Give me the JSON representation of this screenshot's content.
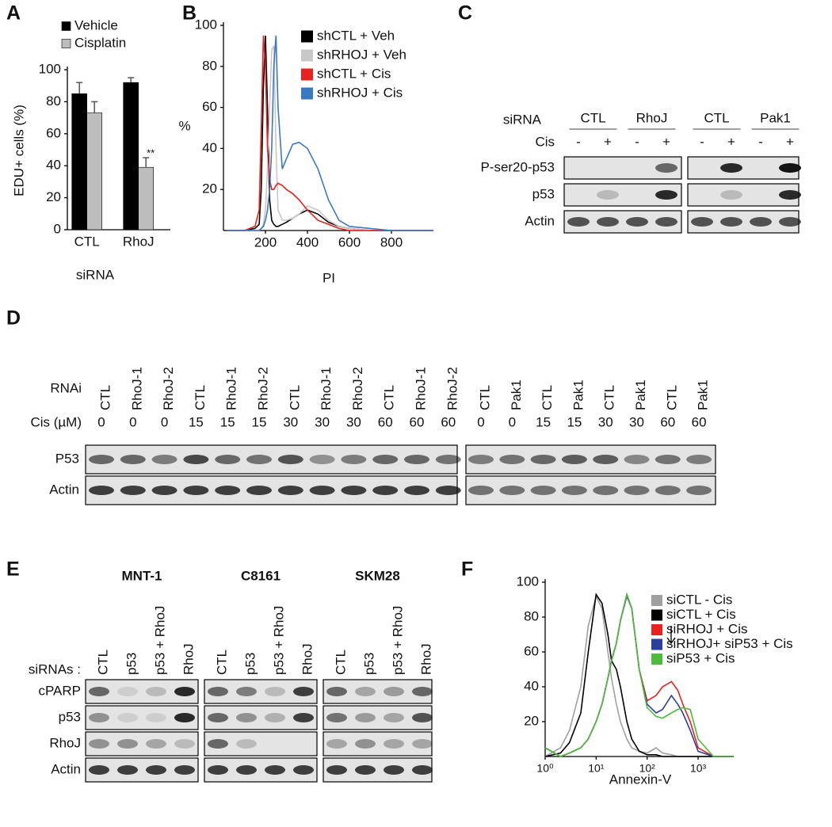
{
  "chart_data": [
    {
      "panel": "A",
      "type": "bar",
      "ylabel": "EDU+ cells (%)",
      "xlabel": "siRNA",
      "categories": [
        "CTL",
        "RhoJ"
      ],
      "series": [
        {
          "name": "Vehicle",
          "color": "#000000",
          "values": [
            85,
            92
          ],
          "errors": [
            7,
            3
          ]
        },
        {
          "name": "Cisplatin",
          "color": "#bdbdbd",
          "values": [
            73,
            39
          ],
          "errors": [
            7,
            6
          ],
          "annotations": [
            null,
            "**"
          ]
        }
      ],
      "ylim": [
        0,
        100
      ],
      "yticks": [
        0,
        20,
        40,
        60,
        80,
        100
      ]
    },
    {
      "panel": "B",
      "type": "line",
      "ylabel": "%",
      "xlabel": "PI",
      "x": [
        20,
        100,
        150,
        170,
        180,
        190,
        200,
        210,
        220,
        230,
        240,
        250,
        260,
        280,
        300,
        330,
        360,
        400,
        450,
        500,
        550,
        600,
        700,
        800,
        1000
      ],
      "series": [
        {
          "name": "shCTL + Veh",
          "color": "#000000",
          "values": [
            0,
            0,
            1,
            3,
            20,
            70,
            95,
            60,
            15,
            5,
            3,
            2,
            2,
            3,
            4,
            6,
            8,
            10,
            8,
            4,
            2,
            1,
            0,
            0,
            0
          ]
        },
        {
          "name": "shRHOJ + Veh",
          "color": "#c8c8c8",
          "values": [
            0,
            0,
            0,
            0,
            1,
            3,
            10,
            30,
            60,
            88,
            90,
            40,
            10,
            5,
            5,
            6,
            8,
            12,
            10,
            5,
            2,
            1,
            0,
            0,
            0
          ]
        },
        {
          "name": "shCTL + Cis",
          "color": "#e8221f",
          "values": [
            0,
            0,
            2,
            10,
            50,
            95,
            80,
            40,
            25,
            20,
            20,
            22,
            23,
            22,
            20,
            18,
            15,
            10,
            5,
            3,
            1,
            0,
            0,
            0,
            0
          ]
        },
        {
          "name": "shRHOJ + Cis",
          "color": "#3a78c4",
          "values": [
            0,
            0,
            0,
            0,
            1,
            2,
            5,
            10,
            20,
            40,
            80,
            95,
            60,
            30,
            35,
            42,
            43,
            40,
            30,
            15,
            5,
            2,
            1,
            0,
            0
          ]
        }
      ],
      "xlim": [
        0,
        1000
      ],
      "xticks": [
        200,
        400,
        600,
        800
      ],
      "ylim": [
        0,
        100
      ],
      "yticks": [
        20,
        40,
        60,
        80,
        100
      ]
    },
    {
      "panel": "F",
      "type": "line",
      "log_x": true,
      "xlabel": "Annexin-V",
      "x": [
        1,
        2,
        3,
        5,
        7,
        10,
        13,
        17,
        20,
        25,
        30,
        40,
        50,
        70,
        100,
        150,
        200,
        300,
        400,
        500,
        700,
        1000,
        2000,
        5000
      ],
      "series": [
        {
          "name": "siCTL - Cis",
          "color": "#a0a0a0",
          "values": [
            0,
            5,
            15,
            40,
            75,
            92,
            85,
            60,
            45,
            30,
            20,
            10,
            5,
            3,
            2,
            5,
            2,
            1,
            0,
            0,
            0,
            0,
            0,
            0
          ]
        },
        {
          "name": "siCTL + Cis",
          "color": "#000000",
          "values": [
            0,
            2,
            8,
            25,
            60,
            93,
            88,
            70,
            55,
            50,
            40,
            20,
            10,
            3,
            1,
            1,
            0,
            0,
            0,
            0,
            0,
            0,
            0,
            0
          ]
        },
        {
          "name": "siRHOJ + Cis",
          "color": "#e8221f",
          "values": [
            5,
            0,
            2,
            5,
            10,
            20,
            30,
            45,
            55,
            65,
            78,
            93,
            85,
            50,
            32,
            35,
            40,
            43,
            38,
            30,
            20,
            5,
            0,
            0
          ]
        },
        {
          "name": "siRHOJ+ siP53 + Cis",
          "color": "#2b3f9e",
          "values": [
            5,
            0,
            2,
            5,
            10,
            20,
            30,
            45,
            55,
            65,
            78,
            92,
            85,
            50,
            30,
            25,
            27,
            35,
            30,
            25,
            15,
            3,
            0,
            0
          ]
        },
        {
          "name": "siP53 + Cis",
          "color": "#4cbb3a",
          "values": [
            5,
            0,
            2,
            5,
            10,
            20,
            30,
            45,
            55,
            65,
            78,
            93,
            85,
            50,
            28,
            23,
            22,
            25,
            27,
            28,
            27,
            10,
            0,
            0
          ]
        }
      ],
      "xlim": [
        1,
        5000
      ],
      "xticks": [
        {
          "value": 1,
          "label": "10⁰"
        },
        {
          "value": 10,
          "label": "10¹"
        },
        {
          "value": 100,
          "label": "10²"
        },
        {
          "value": 1000,
          "label": "10³"
        }
      ],
      "ylim": [
        0,
        100
      ],
      "yticks": [
        20,
        40,
        60,
        80,
        100
      ]
    }
  ],
  "blots": {
    "C": {
      "panel": "C",
      "sirna_label": "siRNA",
      "cis_label": "Cis",
      "groups": [
        "CTL",
        "RhoJ",
        "CTL",
        "Pak1"
      ],
      "cis": [
        "-",
        "+",
        "-",
        "+",
        "-",
        "+",
        "-",
        "+"
      ],
      "rows": [
        "P-ser20-p53",
        "p53",
        "Actin"
      ]
    },
    "D": {
      "panel": "D",
      "rnai_label": "RNAi",
      "cis_label": "Cis (µM)",
      "left_rnai": [
        "CTL",
        "RhoJ-1",
        "RhoJ-2",
        "CTL",
        "RhoJ-1",
        "RhoJ-2",
        "CTL",
        "RhoJ-1",
        "RhoJ-2",
        "CTL",
        "RhoJ-1",
        "RhoJ-2"
      ],
      "left_cis": [
        0,
        0,
        0,
        15,
        15,
        15,
        30,
        30,
        30,
        60,
        60,
        60
      ],
      "right_rnai": [
        "CTL",
        "Pak1",
        "CTL",
        "Pak1",
        "CTL",
        "Pak1",
        "CTL",
        "Pak1"
      ],
      "right_cis": [
        0,
        0,
        15,
        15,
        30,
        30,
        60,
        60
      ],
      "rows": [
        "P53",
        "Actin"
      ]
    },
    "E": {
      "panel": "E",
      "cell_lines": [
        "MNT-1",
        "C8161",
        "SKM28"
      ],
      "sirnas_label": "siRNAs :",
      "lanes": [
        "CTL",
        "p53",
        "p53 + RhoJ",
        "RhoJ"
      ],
      "rows": [
        "cPARP",
        "p53",
        "RhoJ",
        "Actin"
      ]
    }
  }
}
